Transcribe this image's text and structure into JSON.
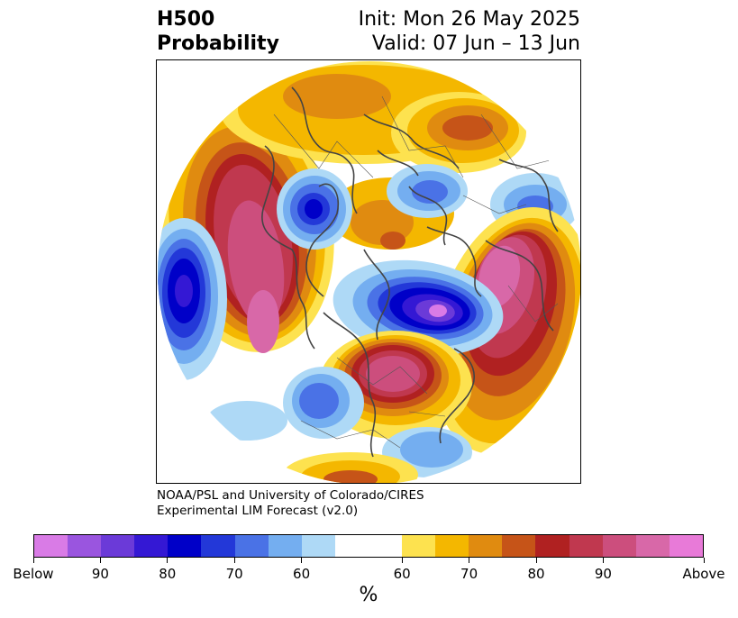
{
  "header": {
    "variable": "H500",
    "product": "Probability",
    "init": "Init: Mon 26 May 2025",
    "valid": "Valid: 07 Jun – 13 Jun"
  },
  "credit": {
    "line1": "NOAA/PSL and University of Colorado/CIRES",
    "line2": "Experimental LIM Forecast (v2.0)"
  },
  "colorbar": {
    "colors": [
      "#d97be6",
      "#9a55df",
      "#6b3ad8",
      "#3418d4",
      "#0000c8",
      "#2338d8",
      "#4a72e6",
      "#74aef0",
      "#aed9f6",
      "#ffffff",
      "#ffffff",
      "#fde24f",
      "#f4b700",
      "#e08b10",
      "#c65418",
      "#b02121",
      "#c0384f",
      "#cc4e7d",
      "#d868a8",
      "#e87ad8"
    ],
    "tick_labels": [
      "Below",
      "90",
      "80",
      "70",
      "60",
      "60",
      "70",
      "80",
      "90",
      "Above"
    ],
    "unit": "%"
  },
  "colors": {
    "coastline": "#444444",
    "below_strong": "#0000c8",
    "above_strong": "#b02121"
  }
}
